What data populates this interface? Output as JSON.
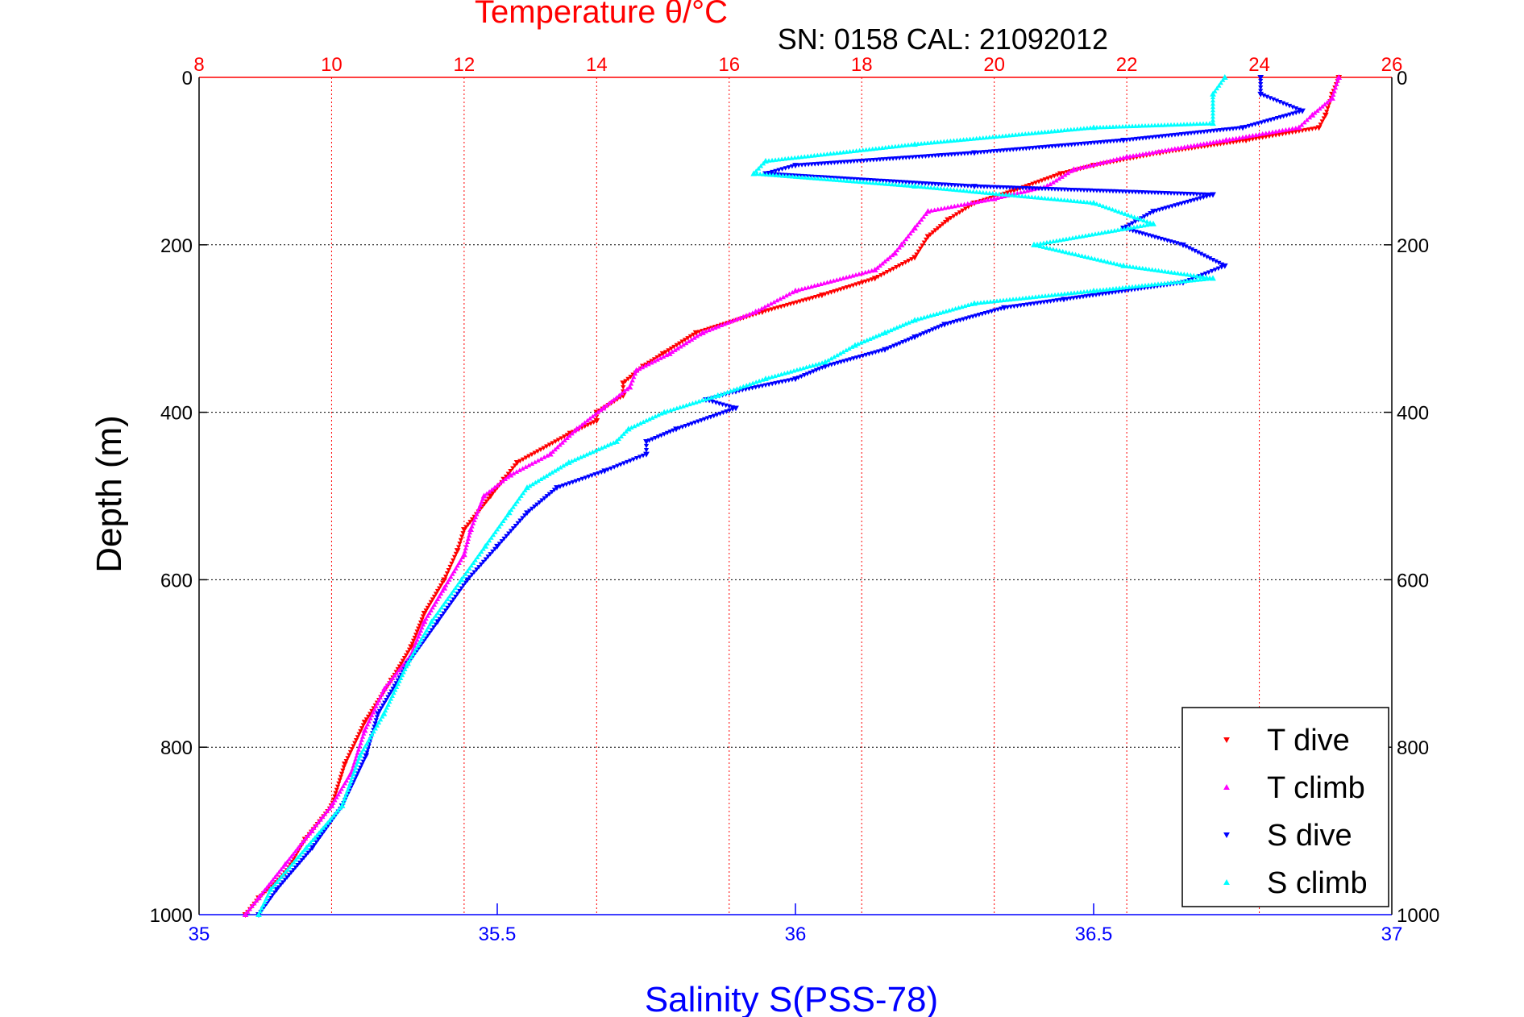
{
  "chart_data": {
    "type": "scatter",
    "title": "Temperature θ/°C",
    "subtitle": "SN: 0158  CAL: 21092012",
    "ylabel": "Depth (m)",
    "xlabel_bottom": "Salinity S(PSS-78)",
    "ylim": [
      1000,
      0
    ],
    "yticks": [
      0,
      200,
      400,
      600,
      800,
      1000
    ],
    "x_top": {
      "label": "Temperature θ/°C",
      "lim": [
        8,
        26
      ],
      "ticks": [
        8,
        10,
        12,
        14,
        16,
        18,
        20,
        22,
        24,
        26
      ]
    },
    "x_bottom": {
      "label": "Salinity S(PSS-78)",
      "lim": [
        35,
        37
      ],
      "ticks": [
        35,
        35.5,
        36,
        36.5,
        37
      ],
      "tick_labels": [
        "35",
        "35.5",
        "36",
        "36.5",
        "37"
      ]
    },
    "grid": true,
    "legend": {
      "placement": "bottom-right",
      "entries": [
        "T dive",
        "T climb",
        "S dive",
        "S climb"
      ]
    },
    "colors": {
      "T dive": "#ff0000",
      "T climb": "#ff00ff",
      "S dive": "#0000ff",
      "S climb": "#00ffff",
      "top_axis": "#ff0000",
      "bottom_axis": "#0000ff",
      "grid_top": "#ff0000",
      "grid_bottom": "#0000ff",
      "grid_depth": "#000000"
    },
    "series": [
      {
        "name": "T dive",
        "axis": "top",
        "marker": "triangle-down",
        "points": [
          [
            25.2,
            0
          ],
          [
            25.1,
            20
          ],
          [
            25.0,
            45
          ],
          [
            24.9,
            60
          ],
          [
            23.8,
            75
          ],
          [
            22.5,
            90
          ],
          [
            21.5,
            105
          ],
          [
            21.0,
            115
          ],
          [
            20.3,
            135
          ],
          [
            19.7,
            150
          ],
          [
            19.3,
            170
          ],
          [
            19.0,
            190
          ],
          [
            18.8,
            215
          ],
          [
            18.2,
            240
          ],
          [
            17.4,
            260
          ],
          [
            16.5,
            280
          ],
          [
            15.5,
            305
          ],
          [
            15.0,
            330
          ],
          [
            14.7,
            345
          ],
          [
            14.4,
            365
          ],
          [
            14.4,
            380
          ],
          [
            14.0,
            400
          ],
          [
            14.0,
            410
          ],
          [
            13.6,
            425
          ],
          [
            12.8,
            460
          ],
          [
            12.6,
            480
          ],
          [
            12.4,
            500
          ],
          [
            12.0,
            540
          ],
          [
            11.9,
            565
          ],
          [
            11.7,
            600
          ],
          [
            11.4,
            640
          ],
          [
            11.2,
            680
          ],
          [
            10.9,
            720
          ],
          [
            10.5,
            770
          ],
          [
            10.2,
            820
          ],
          [
            10.0,
            870
          ],
          [
            9.6,
            910
          ],
          [
            9.3,
            950
          ],
          [
            8.9,
            980
          ],
          [
            8.7,
            1000
          ]
        ]
      },
      {
        "name": "T climb",
        "axis": "top",
        "marker": "triangle-up",
        "points": [
          [
            25.2,
            0
          ],
          [
            25.1,
            25
          ],
          [
            24.8,
            45
          ],
          [
            24.6,
            60
          ],
          [
            23.5,
            75
          ],
          [
            22.0,
            95
          ],
          [
            21.2,
            110
          ],
          [
            20.8,
            130
          ],
          [
            20.0,
            145
          ],
          [
            19.0,
            160
          ],
          [
            18.8,
            180
          ],
          [
            18.6,
            200
          ],
          [
            18.5,
            210
          ],
          [
            18.2,
            230
          ],
          [
            17.0,
            255
          ],
          [
            16.4,
            280
          ],
          [
            15.6,
            305
          ],
          [
            15.1,
            330
          ],
          [
            14.6,
            350
          ],
          [
            14.5,
            370
          ],
          [
            14.1,
            395
          ],
          [
            13.7,
            420
          ],
          [
            13.3,
            450
          ],
          [
            12.7,
            475
          ],
          [
            12.3,
            500
          ],
          [
            12.1,
            540
          ],
          [
            12.0,
            570
          ],
          [
            11.7,
            610
          ],
          [
            11.4,
            650
          ],
          [
            11.2,
            690
          ],
          [
            10.8,
            730
          ],
          [
            10.5,
            780
          ],
          [
            10.3,
            830
          ],
          [
            10.0,
            870
          ],
          [
            9.7,
            900
          ],
          [
            9.3,
            940
          ],
          [
            8.9,
            980
          ],
          [
            8.7,
            1000
          ]
        ]
      },
      {
        "name": "S dive",
        "axis": "bottom",
        "marker": "triangle-down",
        "points": [
          [
            36.78,
            0
          ],
          [
            36.78,
            20
          ],
          [
            36.85,
            40
          ],
          [
            36.75,
            60
          ],
          [
            36.55,
            75
          ],
          [
            36.3,
            90
          ],
          [
            36.0,
            105
          ],
          [
            35.95,
            115
          ],
          [
            36.3,
            130
          ],
          [
            36.7,
            140
          ],
          [
            36.6,
            160
          ],
          [
            36.55,
            180
          ],
          [
            36.65,
            200
          ],
          [
            36.72,
            225
          ],
          [
            36.65,
            245
          ],
          [
            36.45,
            265
          ],
          [
            36.35,
            275
          ],
          [
            36.25,
            295
          ],
          [
            36.2,
            310
          ],
          [
            36.15,
            325
          ],
          [
            36.05,
            345
          ],
          [
            36.0,
            360
          ],
          [
            35.9,
            375
          ],
          [
            35.85,
            385
          ],
          [
            35.9,
            395
          ],
          [
            35.8,
            420
          ],
          [
            35.75,
            435
          ],
          [
            35.75,
            450
          ],
          [
            35.68,
            470
          ],
          [
            35.6,
            490
          ],
          [
            35.55,
            520
          ],
          [
            35.5,
            560
          ],
          [
            35.45,
            600
          ],
          [
            35.4,
            650
          ],
          [
            35.35,
            700
          ],
          [
            35.3,
            760
          ],
          [
            35.28,
            810
          ],
          [
            35.24,
            870
          ],
          [
            35.19,
            920
          ],
          [
            35.13,
            970
          ],
          [
            35.1,
            1000
          ]
        ]
      },
      {
        "name": "S climb",
        "axis": "bottom",
        "marker": "triangle-up",
        "points": [
          [
            36.72,
            0
          ],
          [
            36.7,
            20
          ],
          [
            36.7,
            55
          ],
          [
            36.5,
            60
          ],
          [
            36.2,
            80
          ],
          [
            35.95,
            100
          ],
          [
            35.93,
            115
          ],
          [
            36.2,
            130
          ],
          [
            36.5,
            150
          ],
          [
            36.6,
            175
          ],
          [
            36.4,
            200
          ],
          [
            36.55,
            225
          ],
          [
            36.7,
            240
          ],
          [
            36.5,
            255
          ],
          [
            36.3,
            270
          ],
          [
            36.2,
            290
          ],
          [
            36.15,
            305
          ],
          [
            36.1,
            320
          ],
          [
            36.05,
            340
          ],
          [
            35.95,
            360
          ],
          [
            35.87,
            380
          ],
          [
            35.78,
            400
          ],
          [
            35.72,
            420
          ],
          [
            35.7,
            435
          ],
          [
            35.62,
            460
          ],
          [
            35.55,
            490
          ],
          [
            35.52,
            520
          ],
          [
            35.48,
            560
          ],
          [
            35.44,
            600
          ],
          [
            35.39,
            650
          ],
          [
            35.35,
            700
          ],
          [
            35.31,
            760
          ],
          [
            35.27,
            810
          ],
          [
            35.24,
            870
          ],
          [
            35.18,
            920
          ],
          [
            35.12,
            970
          ],
          [
            35.1,
            1000
          ]
        ]
      }
    ]
  }
}
